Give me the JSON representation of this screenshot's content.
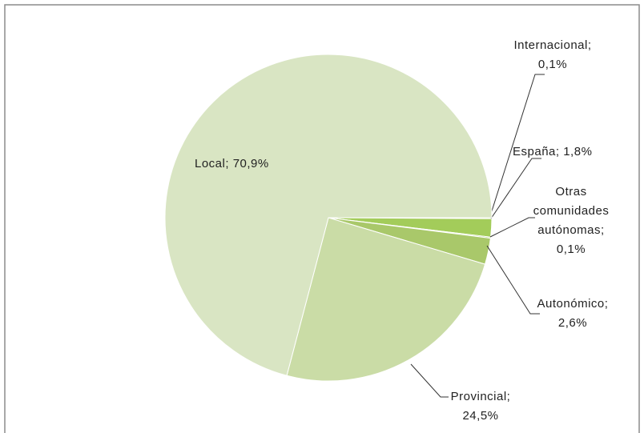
{
  "chart_data": {
    "type": "pie",
    "categories": [
      "Internacional",
      "España",
      "Otras comunidades autónomas",
      "Autonómico",
      "Provincial",
      "Local"
    ],
    "values": [
      0.1,
      1.8,
      0.1,
      2.6,
      24.5,
      70.9
    ],
    "value_labels": [
      "0,1%",
      "1,8%",
      "0,1%",
      "2,6%",
      "24,5%",
      "70,9%"
    ],
    "label_separator": ";",
    "colors": [
      "#8fbf3c",
      "#a3cc5a",
      "#7fae32",
      "#a9c86a",
      "#cadca6",
      "#d9e5c3"
    ]
  }
}
